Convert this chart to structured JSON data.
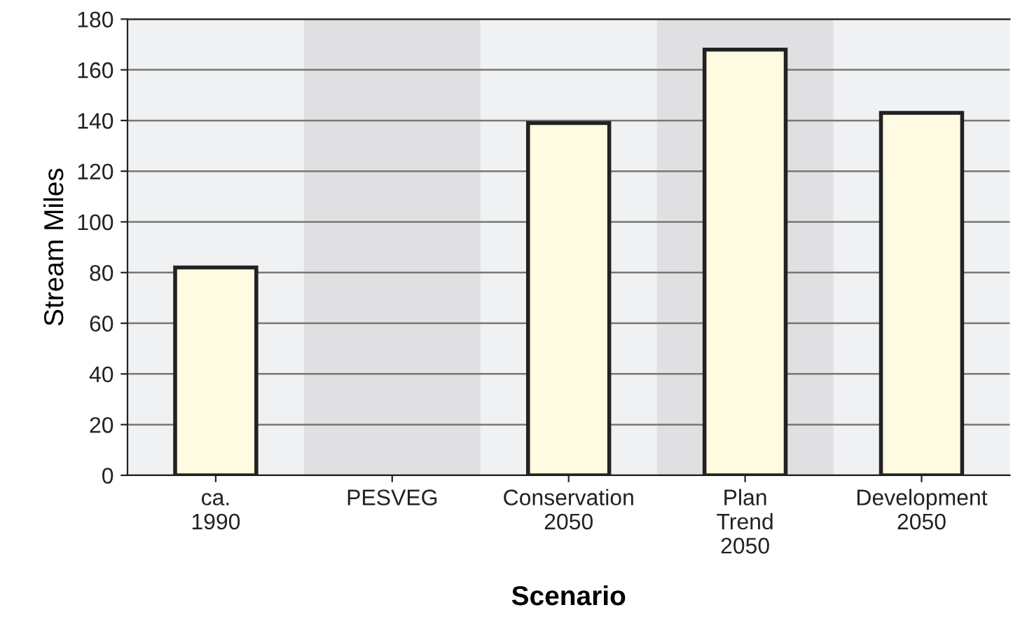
{
  "chart_data": {
    "type": "bar",
    "categories": [
      "ca.\n1990",
      "PESVEG",
      "Conservation\n2050",
      "Plan\nTrend\n2050",
      "Development\n2050"
    ],
    "values": [
      82,
      null,
      139,
      168,
      143
    ],
    "color": "#fffbe0",
    "xlabel": "Scenario",
    "ylabel": "Stream Miles",
    "ylim": [
      0,
      180
    ],
    "yticks": [
      0,
      20,
      40,
      60,
      80,
      100,
      120,
      140,
      160,
      180
    ],
    "grid": "y",
    "bands": [
      {
        "axis": "x",
        "from": "PESVEG",
        "to": "PESVEG",
        "color": "#e0e0e2"
      },
      {
        "axis": "x",
        "from": "Plan\nTrend\n2050",
        "to": "Plan\nTrend\n2050",
        "color": "#e0e0e2"
      }
    ]
  }
}
